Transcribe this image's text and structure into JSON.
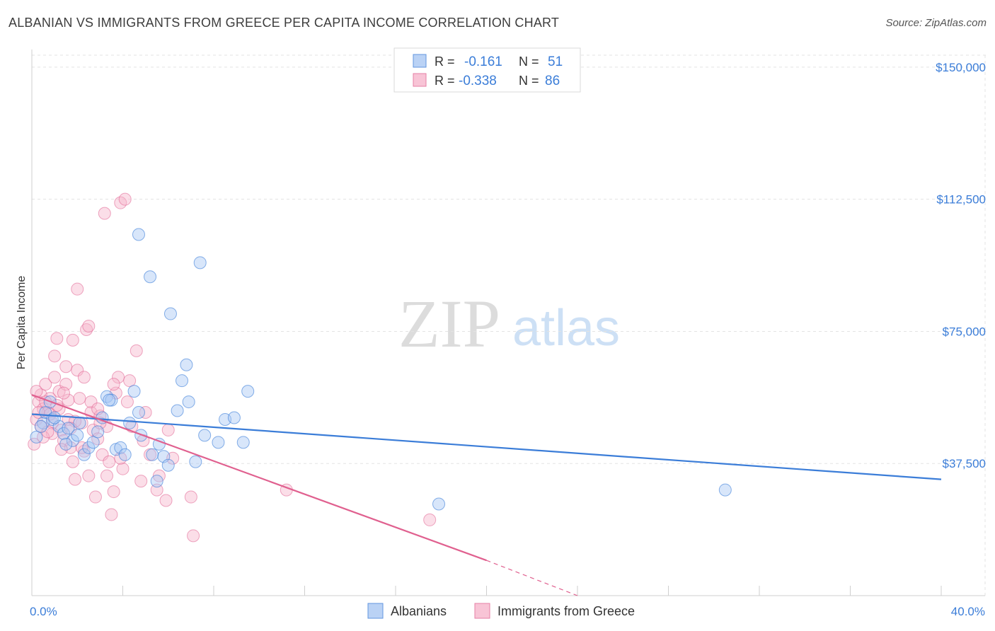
{
  "title": "ALBANIAN VS IMMIGRANTS FROM GREECE PER CAPITA INCOME CORRELATION CHART",
  "source": "Source: ZipAtlas.com",
  "watermark": {
    "zip": "ZIP",
    "atlas": "atlas"
  },
  "colors": {
    "blue": "#3b7dd8",
    "blue_fill": "#a9c7f3",
    "pink": "#e0608f",
    "pink_fill": "#f7b6cc",
    "axis_text_blue": "#3b7dd8"
  },
  "chart_data": {
    "type": "scatter",
    "title": "ALBANIAN VS IMMIGRANTS FROM GREECE PER CAPITA INCOME CORRELATION CHART",
    "xlabel": "",
    "ylabel": "Per Capita Income",
    "xlim": [
      0,
      40
    ],
    "ylim": [
      0,
      155000
    ],
    "x_tick_labels": [
      "0.0%",
      "40.0%"
    ],
    "y_ticks": [
      37500,
      75000,
      112500,
      150000
    ],
    "y_tick_labels": [
      "$37,500",
      "$75,000",
      "$112,500",
      "$150,000"
    ],
    "legend_stats": [
      {
        "r_label": "R =",
        "r": "-0.161",
        "n_label": "N =",
        "n": "51"
      },
      {
        "r_label": "R =",
        "r": "-0.338",
        "n_label": "N =",
        "n": "86"
      }
    ],
    "series": [
      {
        "name": "Albanians",
        "color": "#3b7dd8",
        "trend": {
          "x0": 0,
          "y0": 51500,
          "x1": 40,
          "y1": 33000
        },
        "points": [
          [
            0.2,
            45000
          ],
          [
            0.5,
            49000
          ],
          [
            0.6,
            52000
          ],
          [
            0.9,
            50000
          ],
          [
            1.2,
            48000
          ],
          [
            1.4,
            46000
          ],
          [
            1.6,
            47500
          ],
          [
            1.8,
            44000
          ],
          [
            2.0,
            45500
          ],
          [
            2.3,
            40000
          ],
          [
            2.5,
            42000
          ],
          [
            2.7,
            43500
          ],
          [
            2.9,
            46500
          ],
          [
            3.1,
            50500
          ],
          [
            3.3,
            56500
          ],
          [
            3.5,
            55500
          ],
          [
            3.7,
            41500
          ],
          [
            3.9,
            42000
          ],
          [
            4.1,
            40000
          ],
          [
            4.3,
            49000
          ],
          [
            4.5,
            58000
          ],
          [
            4.7,
            52000
          ],
          [
            4.8,
            45500
          ],
          [
            4.7,
            102500
          ],
          [
            5.2,
            90500
          ],
          [
            5.3,
            40000
          ],
          [
            5.5,
            32500
          ],
          [
            5.6,
            43000
          ],
          [
            5.8,
            39500
          ],
          [
            6.0,
            37000
          ],
          [
            6.1,
            80000
          ],
          [
            6.4,
            52500
          ],
          [
            6.6,
            61000
          ],
          [
            6.8,
            65500
          ],
          [
            6.9,
            55000
          ],
          [
            7.2,
            38000
          ],
          [
            7.4,
            94500
          ],
          [
            7.6,
            45500
          ],
          [
            8.2,
            43500
          ],
          [
            8.5,
            50000
          ],
          [
            8.9,
            50500
          ],
          [
            9.3,
            43500
          ],
          [
            9.5,
            58000
          ],
          [
            0.4,
            48000
          ],
          [
            0.8,
            55000
          ],
          [
            1.0,
            50500
          ],
          [
            1.5,
            43000
          ],
          [
            2.1,
            49000
          ],
          [
            17.9,
            26000
          ],
          [
            30.5,
            30000
          ],
          [
            3.4,
            55500
          ]
        ]
      },
      {
        "name": "Immigrants from Greece",
        "color": "#e0608f",
        "trend": {
          "x0": 0,
          "y0": 57000,
          "x1": 20,
          "y1": 10000,
          "dash_x1": 24,
          "dash_y1": 0
        },
        "points": [
          [
            0.1,
            43000
          ],
          [
            0.2,
            50000
          ],
          [
            0.3,
            55000
          ],
          [
            0.4,
            57000
          ],
          [
            0.5,
            53000
          ],
          [
            0.6,
            60000
          ],
          [
            0.7,
            52000
          ],
          [
            0.8,
            56000
          ],
          [
            0.9,
            49000
          ],
          [
            1.0,
            62000
          ],
          [
            1.0,
            68000
          ],
          [
            1.1,
            73000
          ],
          [
            1.2,
            58000
          ],
          [
            1.2,
            53000
          ],
          [
            1.3,
            47000
          ],
          [
            1.4,
            44000
          ],
          [
            1.5,
            60000
          ],
          [
            1.5,
            65000
          ],
          [
            1.6,
            50000
          ],
          [
            1.7,
            42000
          ],
          [
            1.8,
            38000
          ],
          [
            1.8,
            72500
          ],
          [
            1.9,
            33000
          ],
          [
            2.0,
            64000
          ],
          [
            2.0,
            87000
          ],
          [
            2.1,
            56000
          ],
          [
            2.2,
            49000
          ],
          [
            2.3,
            41000
          ],
          [
            2.4,
            75500
          ],
          [
            2.5,
            34000
          ],
          [
            2.5,
            76500
          ],
          [
            2.6,
            52000
          ],
          [
            2.7,
            47000
          ],
          [
            2.8,
            28000
          ],
          [
            2.9,
            44500
          ],
          [
            3.0,
            51000
          ],
          [
            3.1,
            40000
          ],
          [
            3.2,
            108500
          ],
          [
            3.3,
            48000
          ],
          [
            3.4,
            38000
          ],
          [
            3.5,
            23000
          ],
          [
            3.6,
            29500
          ],
          [
            3.7,
            57500
          ],
          [
            3.8,
            62000
          ],
          [
            3.9,
            111500
          ],
          [
            4.0,
            36000
          ],
          [
            4.1,
            112500
          ],
          [
            4.2,
            55000
          ],
          [
            4.3,
            61000
          ],
          [
            4.4,
            48000
          ],
          [
            4.6,
            69500
          ],
          [
            4.8,
            32500
          ],
          [
            4.9,
            44000
          ],
          [
            5.0,
            52000
          ],
          [
            5.2,
            40000
          ],
          [
            5.5,
            30000
          ],
          [
            5.6,
            34000
          ],
          [
            5.9,
            27000
          ],
          [
            6.0,
            47000
          ],
          [
            6.2,
            39000
          ],
          [
            7.0,
            28000
          ],
          [
            7.1,
            17000
          ],
          [
            11.2,
            30000
          ],
          [
            17.5,
            21500
          ],
          [
            0.3,
            52000
          ],
          [
            0.4,
            48000
          ],
          [
            0.6,
            55000
          ],
          [
            0.9,
            46000
          ],
          [
            1.1,
            54000
          ],
          [
            1.3,
            41500
          ],
          [
            1.6,
            55500
          ],
          [
            1.9,
            49500
          ],
          [
            2.2,
            42000
          ],
          [
            2.6,
            55000
          ],
          [
            3.0,
            49000
          ],
          [
            3.3,
            34000
          ],
          [
            3.6,
            60000
          ],
          [
            3.9,
            39000
          ],
          [
            0.2,
            58000
          ],
          [
            0.5,
            45000
          ],
          [
            0.8,
            51500
          ],
          [
            1.4,
            57500
          ],
          [
            1.7,
            47500
          ],
          [
            2.3,
            62000
          ],
          [
            2.9,
            53000
          ],
          [
            0.7,
            46500
          ]
        ]
      }
    ]
  },
  "legend": {
    "items": [
      "Albanians",
      "Immigrants from Greece"
    ]
  }
}
